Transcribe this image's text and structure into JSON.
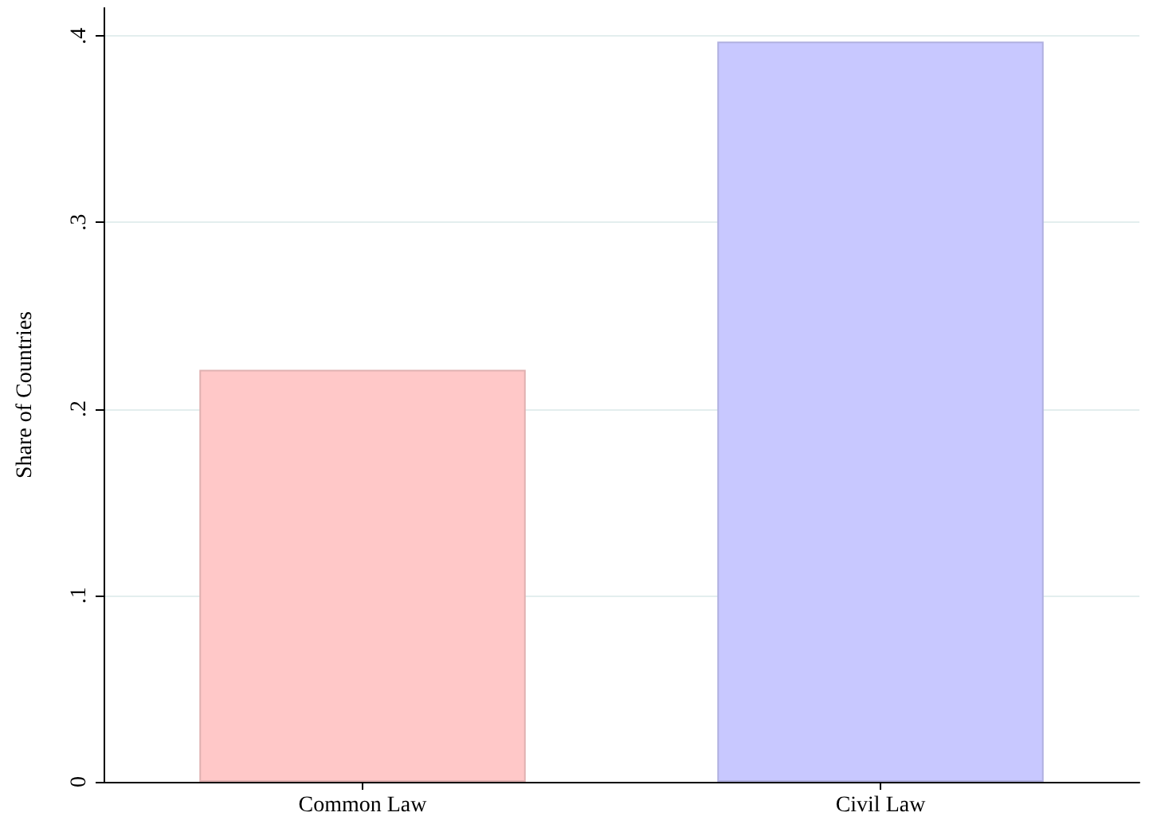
{
  "chart_data": {
    "type": "bar",
    "ylabel": "Share of Countries",
    "categories": [
      "Common Law",
      "Civil Law"
    ],
    "values": [
      0.221,
      0.397
    ],
    "colors": [
      "#ffc8c8",
      "#c8c8ff"
    ],
    "ylim": [
      0,
      0.415
    ],
    "yticks": [
      {
        "value": 0,
        "label": "0"
      },
      {
        "value": 0.1,
        "label": ".1"
      },
      {
        "value": 0.2,
        "label": ".2"
      },
      {
        "value": 0.3,
        "label": ".3"
      },
      {
        "value": 0.4,
        "label": ".4"
      }
    ],
    "grid": "y"
  }
}
